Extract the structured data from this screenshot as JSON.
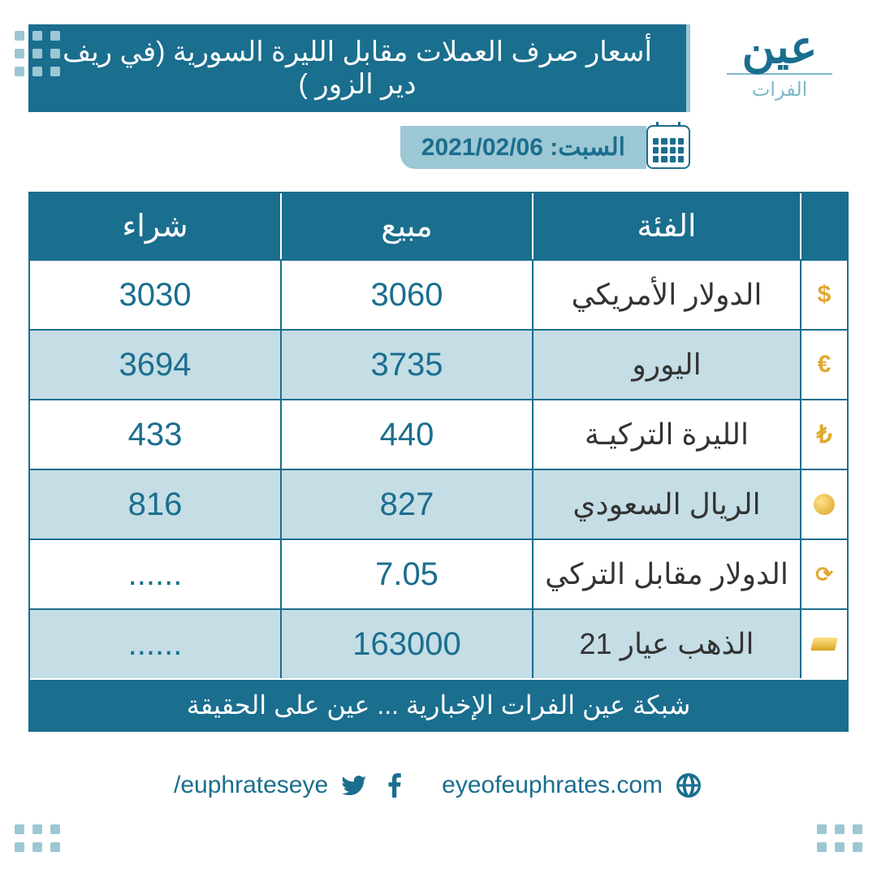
{
  "brand": {
    "name": "عين",
    "sub": "الفرات"
  },
  "title": "أسعار صرف العملات مقابل الليرة السورية (في ريف دير الزور )",
  "date_label": "السبت: 2021/02/06",
  "columns": {
    "category": "الفئة",
    "sell": "مبيع",
    "buy": "شراء"
  },
  "rows": [
    {
      "icon": "dollar-icon",
      "glyph": "$",
      "category": "الدولار الأمريكي",
      "sell": "3060",
      "buy": "3030"
    },
    {
      "icon": "euro-icon",
      "glyph": "€",
      "category": "اليورو",
      "sell": "3735",
      "buy": "3694"
    },
    {
      "icon": "lira-tr-icon",
      "glyph": "₺",
      "category": "الليرة التركيـة",
      "sell": "440",
      "buy": "433"
    },
    {
      "icon": "riyal-icon",
      "glyph": "coin",
      "category": "الريال السعودي",
      "sell": "827",
      "buy": "816"
    },
    {
      "icon": "exchange-icon",
      "glyph": "⇄",
      "category": "الدولار مقابل التركي",
      "sell": "7.05",
      "buy": "......"
    },
    {
      "icon": "gold-icon",
      "glyph": "gold",
      "category": "الذهب عيار 21",
      "sell": "163000",
      "buy": "......"
    }
  ],
  "footer_text": "شبكة عين الفرات الإخبارية ... عين على الحقيقة",
  "socials": {
    "site": "eyeofeuphrates.com",
    "handle": "/euphrateseye"
  },
  "colors": {
    "primary": "#1a6e8e",
    "tint": "#9cc7d4",
    "row_alt": "#c5dde5",
    "text_dark": "#2c2c2c",
    "gold": "#e0a82e"
  }
}
